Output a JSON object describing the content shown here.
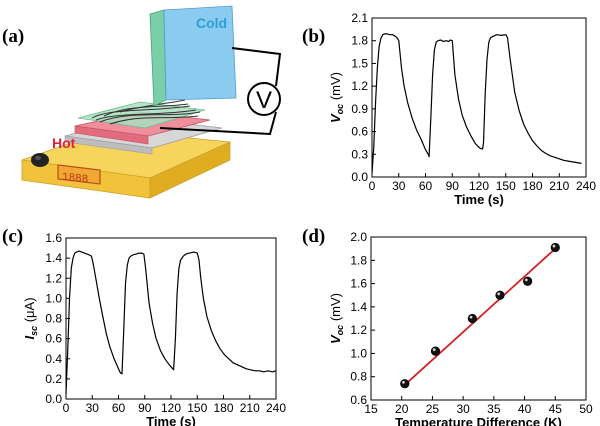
{
  "panels": {
    "a": "(a)",
    "b": "(b)",
    "c": "(c)",
    "d": "(d)"
  },
  "illustration": {
    "cold_label": "Cold",
    "hot_label": "Hot",
    "meter_symbol": "V",
    "display_text": "1888",
    "colors": {
      "cold_plate": "#7fc6ee",
      "cold_plate_edge": "#79c9a8",
      "cold_text": "#2a9fd6",
      "hot_plate": "#e8788a",
      "hot_text": "#e01f3d",
      "base": "#f4c842",
      "display": "#e9a233"
    }
  },
  "chart_data": [
    {
      "id": "b",
      "type": "line",
      "title": "",
      "xlabel": "Time (s)",
      "ylabel": {
        "sym": "V",
        "sub": "oc",
        "unit": " (mV)"
      },
      "xlim": [
        0,
        240
      ],
      "ylim": [
        0,
        2.1
      ],
      "xticks": [
        "0",
        "30",
        "60",
        "90",
        "120",
        "150",
        "180",
        "210",
        "240"
      ],
      "yticks": [
        "0.0",
        "0.3",
        "0.6",
        "0.9",
        "1.2",
        "1.5",
        "1.8",
        "2.1"
      ],
      "color": "#000000",
      "series": [
        {
          "x": [
            0,
            2,
            4,
            6,
            8,
            10,
            12,
            14,
            17,
            20,
            23,
            26,
            28,
            30,
            33,
            36,
            40,
            45,
            50,
            55,
            60,
            63,
            64,
            66,
            68,
            70,
            72,
            74,
            77,
            80,
            83,
            86,
            88,
            90,
            93,
            97,
            101,
            106,
            111,
            116,
            121,
            124,
            125,
            127,
            129,
            131,
            133,
            136,
            140,
            145,
            150,
            152,
            155,
            160,
            165,
            170,
            175,
            180,
            185,
            190,
            195,
            200,
            205,
            210,
            215,
            220,
            225,
            230,
            235
          ],
          "y": [
            0.05,
            0.4,
            1.0,
            1.45,
            1.72,
            1.83,
            1.88,
            1.89,
            1.89,
            1.88,
            1.88,
            1.86,
            1.84,
            1.8,
            1.45,
            1.2,
            0.98,
            0.78,
            0.62,
            0.5,
            0.36,
            0.3,
            0.27,
            0.8,
            1.35,
            1.68,
            1.78,
            1.8,
            1.81,
            1.79,
            1.8,
            1.79,
            1.81,
            1.8,
            1.35,
            1.03,
            0.82,
            0.66,
            0.54,
            0.44,
            0.38,
            0.37,
            0.45,
            1.1,
            1.55,
            1.78,
            1.84,
            1.86,
            1.88,
            1.87,
            1.88,
            1.84,
            1.55,
            1.12,
            0.88,
            0.7,
            0.58,
            0.48,
            0.41,
            0.35,
            0.31,
            0.28,
            0.26,
            0.24,
            0.22,
            0.21,
            0.2,
            0.19,
            0.18
          ]
        }
      ]
    },
    {
      "id": "c",
      "type": "line",
      "title": "",
      "xlabel": "Time (s)",
      "ylabel": {
        "sym": "I",
        "sub": "sc",
        "unit": " (μA)"
      },
      "xlim": [
        0,
        240
      ],
      "ylim": [
        0,
        1.6
      ],
      "xticks": [
        "0",
        "30",
        "60",
        "90",
        "120",
        "150",
        "180",
        "210",
        "240"
      ],
      "yticks": [
        "0.0",
        "0.2",
        "0.4",
        "0.6",
        "0.8",
        "1.0",
        "1.2",
        "1.4",
        "1.6"
      ],
      "color": "#000000",
      "series": [
        {
          "x": [
            0,
            2,
            4,
            6,
            8,
            10,
            12,
            15,
            18,
            21,
            24,
            27,
            29,
            31,
            34,
            38,
            42,
            46,
            50,
            55,
            60,
            62,
            64,
            66,
            68,
            70,
            72,
            74,
            76,
            80,
            84,
            87,
            89,
            91,
            95,
            99,
            103,
            108,
            113,
            118,
            122,
            123,
            125,
            127,
            129,
            131,
            134,
            137,
            141,
            146,
            150,
            152,
            154,
            157,
            161,
            166,
            171,
            176,
            181,
            186,
            191,
            196,
            201,
            206,
            211,
            216,
            221,
            226,
            231,
            236,
            240
          ],
          "y": [
            0.05,
            0.5,
            1.0,
            1.3,
            1.4,
            1.45,
            1.46,
            1.47,
            1.46,
            1.45,
            1.44,
            1.43,
            1.42,
            1.35,
            1.2,
            1.0,
            0.82,
            0.65,
            0.52,
            0.4,
            0.3,
            0.26,
            0.25,
            0.7,
            1.15,
            1.33,
            1.4,
            1.42,
            1.43,
            1.44,
            1.45,
            1.45,
            1.44,
            1.3,
            0.95,
            0.75,
            0.6,
            0.48,
            0.4,
            0.34,
            0.3,
            0.29,
            0.6,
            1.05,
            1.3,
            1.38,
            1.42,
            1.44,
            1.45,
            1.46,
            1.45,
            1.38,
            1.2,
            1.0,
            0.82,
            0.68,
            0.58,
            0.5,
            0.44,
            0.4,
            0.36,
            0.34,
            0.32,
            0.3,
            0.29,
            0.28,
            0.28,
            0.27,
            0.28,
            0.27,
            0.28
          ]
        }
      ]
    },
    {
      "id": "d",
      "type": "scatter",
      "title": "",
      "xlabel": "Temperature Difference (K)",
      "ylabel": {
        "sym": "V",
        "sub": "oc",
        "unit": " (mV)"
      },
      "xlim": [
        15,
        50
      ],
      "ylim": [
        0.6,
        2.0
      ],
      "xticks": [
        "15",
        "20",
        "25",
        "30",
        "35",
        "40",
        "45",
        "50"
      ],
      "yticks": [
        "0.6",
        "0.8",
        "1.0",
        "1.2",
        "1.4",
        "1.6",
        "1.8",
        "2.0"
      ],
      "point_color": "#111111",
      "fit_color": "#d42020",
      "fit_line": {
        "x": [
          20.5,
          45
        ],
        "y": [
          0.73,
          1.9
        ]
      },
      "series": [
        {
          "x": [
            20.5,
            25.5,
            31.5,
            36,
            40.5,
            45
          ],
          "y": [
            0.74,
            1.02,
            1.3,
            1.5,
            1.62,
            1.91
          ]
        }
      ]
    }
  ]
}
